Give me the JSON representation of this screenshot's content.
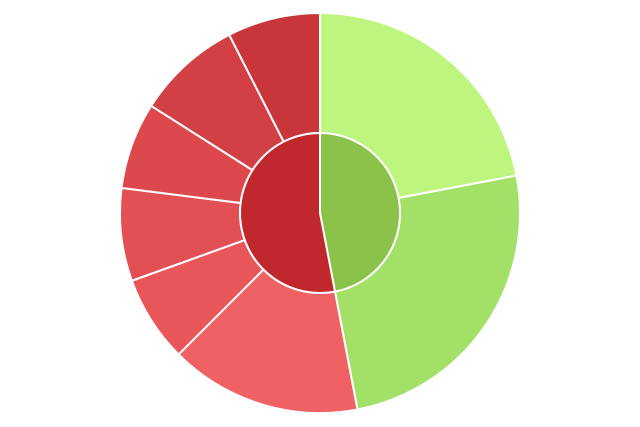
{
  "chart_data": {
    "type": "sunburst",
    "title": "",
    "legend": "none",
    "inner": [
      {
        "value": 47,
        "color": "#8bc34a"
      },
      {
        "value": 53,
        "color": "#c0282d"
      }
    ],
    "outer": [
      {
        "parent": 0,
        "value": 22,
        "color": "#bdf57e"
      },
      {
        "parent": 0,
        "value": 25,
        "color": "#a3e067"
      },
      {
        "parent": 1,
        "value": 15.5,
        "color": "#ef6163"
      },
      {
        "parent": 1,
        "value": 7,
        "color": "#e8565a"
      },
      {
        "parent": 1,
        "value": 7.5,
        "color": "#e35054"
      },
      {
        "parent": 1,
        "value": 7,
        "color": "#dc484c"
      },
      {
        "parent": 1,
        "value": 8.5,
        "color": "#d24046"
      },
      {
        "parent": 1,
        "value": 7.5,
        "color": "#c8363b"
      }
    ]
  }
}
